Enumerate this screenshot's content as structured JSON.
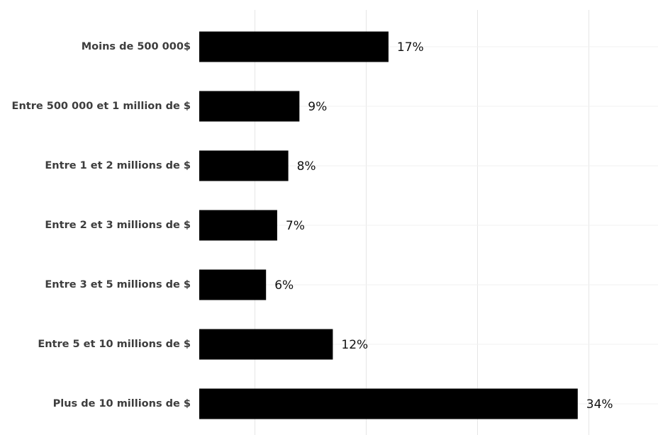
{
  "chart_data": {
    "type": "bar",
    "orientation": "horizontal",
    "title": "",
    "xlabel": "",
    "ylabel": "",
    "categories": [
      "Moins de 500 000$",
      "Entre 500 000 et 1 million de $",
      "Entre 1 et 2 millions de $",
      "Entre 2 et 3 millions de $",
      "Entre 3 et 5 millions de $",
      "Entre 5 et 10 millions de $",
      "Plus de 10 millions de $"
    ],
    "values": [
      17,
      9,
      8,
      7,
      6,
      12,
      34
    ],
    "value_labels": [
      "17%",
      "9%",
      "8%",
      "7%",
      "6%",
      "12%",
      "34%"
    ],
    "unit": "%",
    "xlim": [
      0,
      41
    ],
    "grid": true,
    "legend": "none",
    "bar_color": "#000000"
  }
}
